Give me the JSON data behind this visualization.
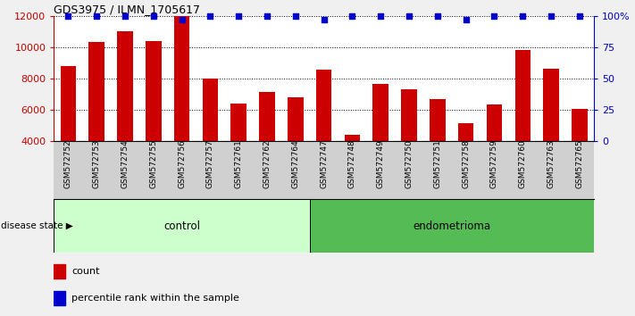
{
  "title": "GDS3975 / ILMN_1705617",
  "samples": [
    "GSM572752",
    "GSM572753",
    "GSM572754",
    "GSM572755",
    "GSM572756",
    "GSM572757",
    "GSM572761",
    "GSM572762",
    "GSM572764",
    "GSM572747",
    "GSM572748",
    "GSM572749",
    "GSM572750",
    "GSM572751",
    "GSM572758",
    "GSM572759",
    "GSM572760",
    "GSM572763",
    "GSM572765"
  ],
  "counts": [
    8800,
    10350,
    11000,
    10400,
    12000,
    8000,
    6350,
    7100,
    6750,
    8550,
    4350,
    7650,
    7300,
    6650,
    5100,
    6300,
    9800,
    8600,
    6050
  ],
  "percentiles": [
    100,
    100,
    100,
    100,
    97,
    100,
    100,
    100,
    100,
    97,
    100,
    100,
    100,
    100,
    97,
    100,
    100,
    100,
    100
  ],
  "group": [
    "control",
    "control",
    "control",
    "control",
    "control",
    "control",
    "control",
    "control",
    "control",
    "endometrioma",
    "endometrioma",
    "endometrioma",
    "endometrioma",
    "endometrioma",
    "endometrioma",
    "endometrioma",
    "endometrioma",
    "endometrioma",
    "endometrioma"
  ],
  "n_control": 9,
  "n_endometrioma": 10,
  "bar_color": "#cc0000",
  "dot_color": "#0000cc",
  "control_bg": "#ccffcc",
  "endometrioma_bg": "#55bb55",
  "ylim_left": [
    4000,
    12000
  ],
  "ylim_right": [
    0,
    100
  ],
  "yticks_left": [
    4000,
    6000,
    8000,
    10000,
    12000
  ],
  "yticks_right": [
    0,
    25,
    50,
    75,
    100
  ],
  "grid_values": [
    6000,
    8000,
    10000
  ],
  "tick_label_color_left": "#cc0000",
  "tick_label_color_right": "#0000cc",
  "label_count": "count",
  "label_percentile": "percentile rank within the sample",
  "disease_state_label": "disease state",
  "fig_bg_color": "#f0f0f0",
  "plot_bg_color": "#ffffff",
  "xtick_bg_color": "#d0d0d0"
}
